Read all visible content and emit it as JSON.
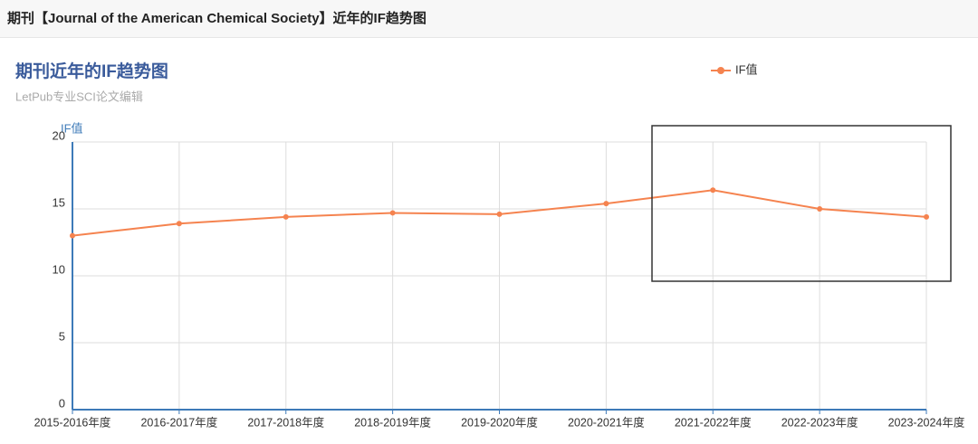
{
  "page_header": "期刊【Journal of the American Chemical Society】近年的IF趋势图",
  "chart_data": {
    "type": "line",
    "title": "期刊近年的IF趋势图",
    "subtitle": "LetPub专业SCI论文编辑",
    "y_label": "IF值",
    "categories": [
      "2015-2016年度",
      "2016-2017年度",
      "2017-2018年度",
      "2018-2019年度",
      "2019-2020年度",
      "2020-2021年度",
      "2021-2022年度",
      "2022-2023年度",
      "2023-2024年度"
    ],
    "series": [
      {
        "name": "IF值",
        "color": "#f5834f",
        "values": [
          13.0,
          13.9,
          14.4,
          14.7,
          14.6,
          15.4,
          16.4,
          15.0,
          14.4
        ]
      }
    ],
    "ylim": [
      0,
      20
    ],
    "yticks": [
      0,
      5,
      10,
      15,
      20
    ],
    "grid": true,
    "legend": "top-right"
  }
}
